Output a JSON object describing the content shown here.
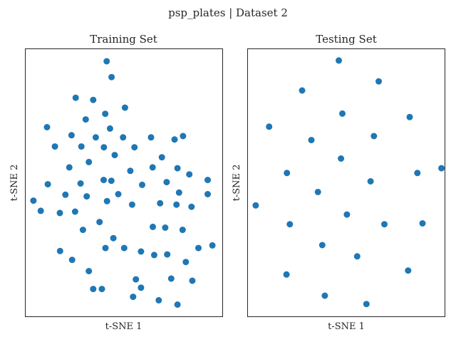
{
  "figure": {
    "suptitle": "psp_plates | Dataset 2",
    "point_color": "#1f77b4"
  },
  "chart_data": [
    {
      "type": "scatter",
      "title": "Training Set",
      "xlabel": "t-SNE 1",
      "ylabel": "t-SNE 2",
      "xlim": [
        0,
        100
      ],
      "ylim": [
        0,
        100
      ],
      "grid": false,
      "ticks_visible": false,
      "points": [
        [
          41.4,
          95.2
        ],
        [
          43.9,
          89.3
        ],
        [
          25.7,
          81.6
        ],
        [
          34.6,
          80.8
        ],
        [
          50.7,
          77.9
        ],
        [
          40.7,
          75.6
        ],
        [
          30.8,
          73.5
        ],
        [
          43.1,
          70.1
        ],
        [
          11.2,
          70.6
        ],
        [
          23.6,
          67.6
        ],
        [
          35.9,
          66.8
        ],
        [
          49.7,
          66.8
        ],
        [
          63.9,
          66.8
        ],
        [
          75.8,
          66.0
        ],
        [
          80.1,
          67.3
        ],
        [
          15.2,
          63.4
        ],
        [
          28.6,
          63.4
        ],
        [
          40.0,
          63.1
        ],
        [
          55.5,
          63.1
        ],
        [
          45.5,
          60.2
        ],
        [
          69.4,
          59.4
        ],
        [
          32.4,
          57.6
        ],
        [
          22.5,
          55.6
        ],
        [
          64.7,
          55.6
        ],
        [
          77.3,
          55.3
        ],
        [
          53.4,
          54.3
        ],
        [
          83.3,
          53.0
        ],
        [
          92.6,
          50.9
        ],
        [
          11.6,
          49.3
        ],
        [
          28.2,
          49.6
        ],
        [
          39.9,
          50.9
        ],
        [
          43.8,
          50.6
        ],
        [
          59.4,
          49.1
        ],
        [
          71.8,
          50.1
        ],
        [
          20.5,
          45.4
        ],
        [
          31.3,
          44.8
        ],
        [
          47.3,
          45.6
        ],
        [
          78.1,
          46.2
        ],
        [
          92.6,
          45.6
        ],
        [
          4.3,
          43.2
        ],
        [
          41.6,
          43.0
        ],
        [
          54.3,
          41.7
        ],
        [
          68.5,
          42.2
        ],
        [
          76.8,
          41.7
        ],
        [
          84.4,
          40.9
        ],
        [
          8.0,
          39.4
        ],
        [
          17.7,
          38.6
        ],
        [
          25.4,
          39.1
        ],
        [
          64.8,
          33.4
        ],
        [
          71.1,
          33.1
        ],
        [
          79.9,
          32.3
        ],
        [
          29.4,
          32.3
        ],
        [
          37.8,
          35.2
        ],
        [
          44.8,
          29.2
        ],
        [
          40.8,
          25.5
        ],
        [
          50.3,
          25.5
        ],
        [
          58.8,
          24.2
        ],
        [
          17.8,
          24.4
        ],
        [
          23.9,
          21.1
        ],
        [
          65.5,
          22.9
        ],
        [
          72.1,
          23.1
        ],
        [
          95.0,
          26.5
        ],
        [
          87.9,
          25.5
        ],
        [
          81.5,
          20.3
        ],
        [
          32.4,
          16.9
        ],
        [
          56.2,
          13.8
        ],
        [
          74.1,
          14.1
        ],
        [
          84.8,
          13.3
        ],
        [
          58.8,
          10.7
        ],
        [
          34.6,
          10.2
        ],
        [
          39.0,
          10.2
        ],
        [
          54.8,
          7.3
        ],
        [
          67.8,
          6.0
        ],
        [
          77.3,
          4.4
        ]
      ]
    },
    {
      "type": "scatter",
      "title": "Testing Set",
      "xlabel": "t-SNE 1",
      "ylabel": "t-SNE 2",
      "xlim": [
        0,
        100
      ],
      "ylim": [
        0,
        100
      ],
      "grid": false,
      "ticks_visible": false,
      "points": [
        [
          46.4,
          95.5
        ],
        [
          66.6,
          87.7
        ],
        [
          27.8,
          84.3
        ],
        [
          48.2,
          75.7
        ],
        [
          82.3,
          74.4
        ],
        [
          11.1,
          70.8
        ],
        [
          32.5,
          65.8
        ],
        [
          64.2,
          67.3
        ],
        [
          47.5,
          58.9
        ],
        [
          98.4,
          55.3
        ],
        [
          20.1,
          53.5
        ],
        [
          62.5,
          50.4
        ],
        [
          86.2,
          53.5
        ],
        [
          35.8,
          46.4
        ],
        [
          4.3,
          41.4
        ],
        [
          50.5,
          38.0
        ],
        [
          21.6,
          34.4
        ],
        [
          69.5,
          34.4
        ],
        [
          88.8,
          34.7
        ],
        [
          38.0,
          26.6
        ],
        [
          55.7,
          22.4
        ],
        [
          19.9,
          15.6
        ],
        [
          81.5,
          17.1
        ],
        [
          39.3,
          7.7
        ],
        [
          60.4,
          4.6
        ]
      ]
    }
  ]
}
